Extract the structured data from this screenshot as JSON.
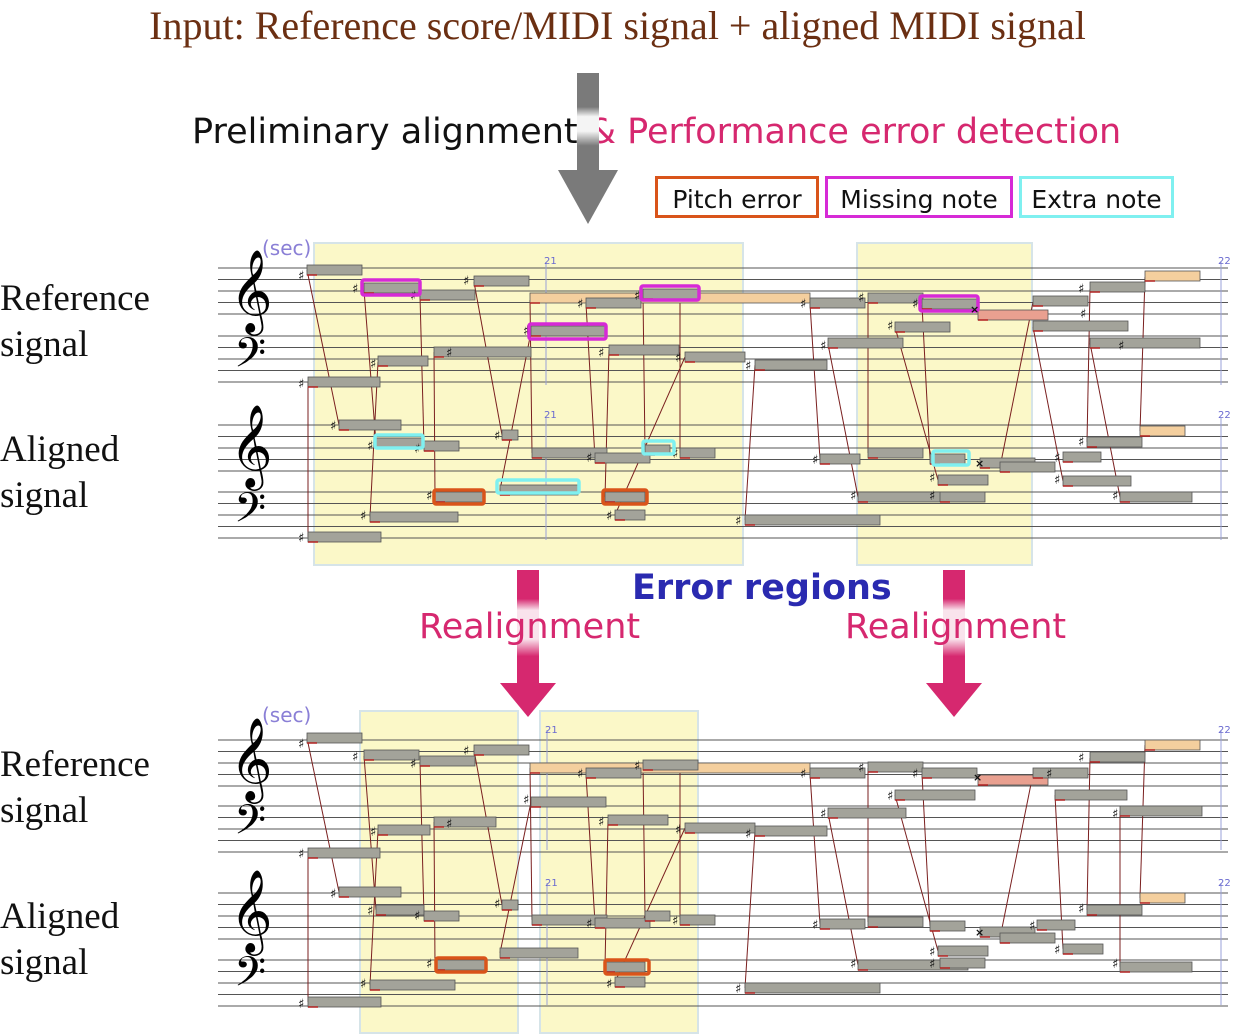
{
  "title": "Input: Reference score/MIDI signal + aligned MIDI signal",
  "step": {
    "prefix": "Preliminary alignment ",
    "highlight": "& Performance error detection"
  },
  "legend": [
    {
      "label": "Pitch error",
      "color": "#d9541a"
    },
    {
      "label": "Missing note",
      "color": "#d62ad6"
    },
    {
      "label": "Extra note",
      "color": "#7ff0f0"
    }
  ],
  "labels": {
    "reference": "Reference signal",
    "reference_line1": "Reference",
    "reference_line2": "signal",
    "aligned_line1": "Aligned",
    "aligned_line2": "signal",
    "sec": "(sec)",
    "t21": "21",
    "t22": "22"
  },
  "error_regions": "Error regions",
  "realignment": "Realignment",
  "colors": {
    "arrow_gray": "#7a7a7a",
    "arrow_pink": "#d6286f",
    "region": "#fbf8c8",
    "note": "#a3a39a",
    "note_orange": "#f4cf9e"
  }
}
